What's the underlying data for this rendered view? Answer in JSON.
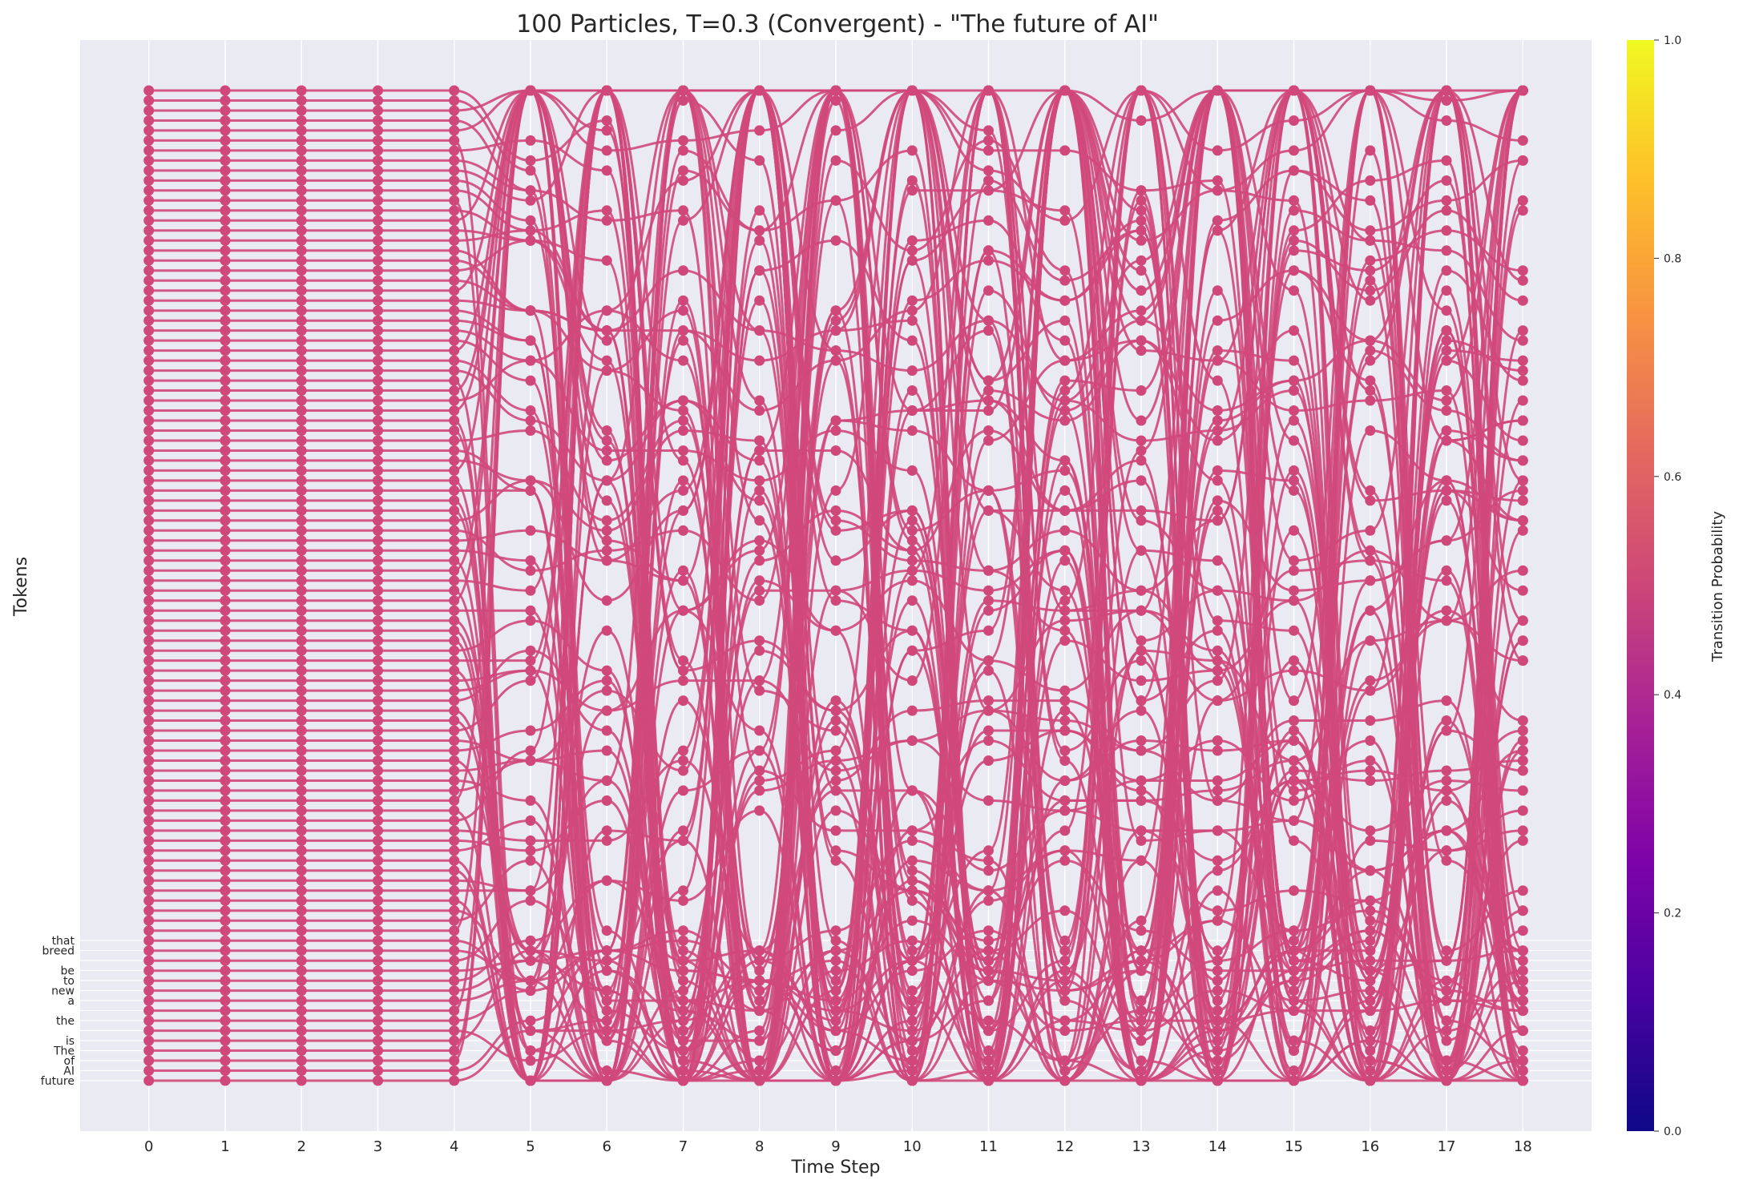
{
  "chart_data": {
    "type": "line",
    "title": "100 Particles, T=0.3 (Convergent) - \"The future of AI\"",
    "xlabel": "Time Step",
    "ylabel": "Tokens",
    "x": [
      0,
      1,
      2,
      3,
      4,
      5,
      6,
      7,
      8,
      9,
      10,
      11,
      12,
      13,
      14,
      15,
      16,
      17,
      18
    ],
    "xlim": [
      -0.9,
      18.9
    ],
    "y_tick_labels": [
      "future",
      "AI",
      "of",
      "The",
      "is",
      "",
      "the",
      "",
      "a",
      "new",
      "to",
      "be",
      "",
      "breed",
      "that"
    ],
    "particle_count": 100,
    "series_color": "#d0487a",
    "grid": true,
    "background": "#eaeaf2",
    "colorbar": {
      "label": "Transition Probability",
      "range": [
        0.0,
        1.0
      ],
      "ticks": [
        "0.0",
        "0.2",
        "0.4",
        "0.6",
        "0.8",
        "1.0"
      ],
      "colormap": "plasma"
    }
  }
}
